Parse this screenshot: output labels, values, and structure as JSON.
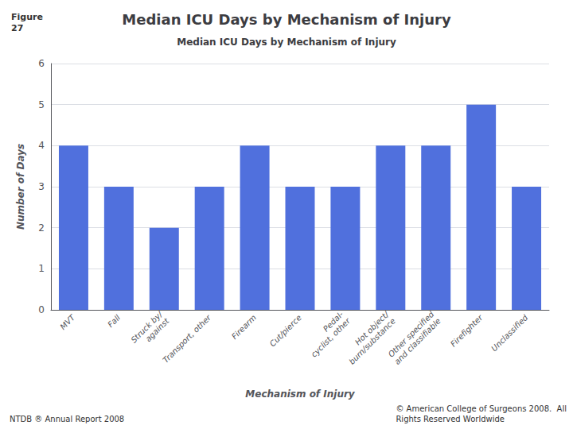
{
  "chart_data": {
    "type": "bar",
    "title": "Median ICU Days by Mechanism of Injury",
    "subtitle": "Median ICU Days by Mechanism of Injury",
    "xlabel": "Mechanism of Injury",
    "ylabel": "Number of Days",
    "categories": [
      "MVT",
      "Fall",
      "Struck by/\nagainst",
      "Transport, other",
      "Firearm",
      "Cut/pierce",
      "Pedal-\ncyclist, other",
      "Hot object/\nburn/substance",
      "Other specified\nand classifiable",
      "Firefighter",
      "Unclassified"
    ],
    "values": [
      4,
      3,
      2,
      3,
      4,
      3,
      3,
      4,
      4,
      5,
      3
    ],
    "ylim": [
      0,
      6
    ],
    "yticks": [
      0,
      1,
      2,
      3,
      4,
      5,
      6
    ],
    "grid": true,
    "annotations": [
      "Figure\n27",
      "NTDB ® Annual Report 2008",
      "© American College of Surgeons 2008.  All\nRights Reserved Worldwide"
    ]
  }
}
